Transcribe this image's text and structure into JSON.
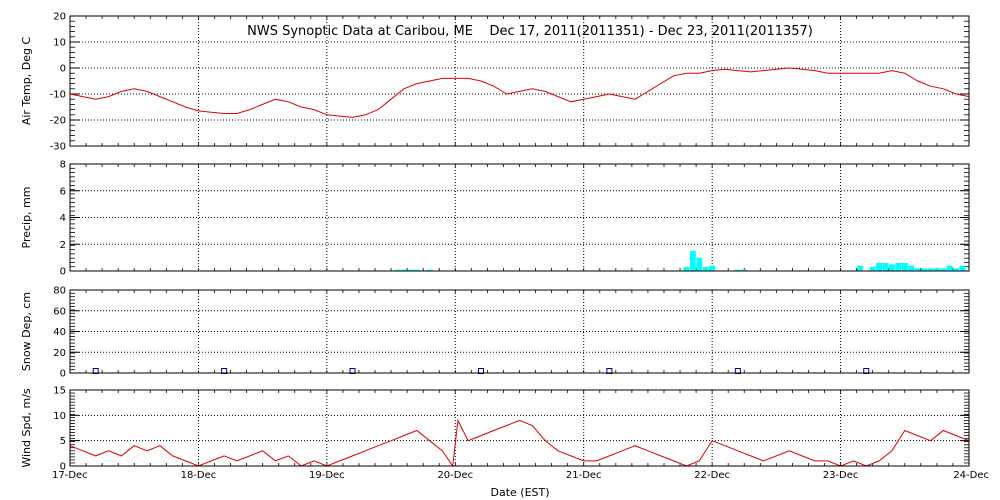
{
  "chart_data": {
    "title": "NWS Synoptic Data at Caribou, ME    Dec 17, 2011(2011351) - Dec 23, 2011(2011357)",
    "xlabel": "Date (EST)",
    "x_tick_labels": [
      "17-Dec",
      "18-Dec",
      "19-Dec",
      "20-Dec",
      "21-Dec",
      "22-Dec",
      "23-Dec",
      "24-Dec"
    ],
    "x_range_days": [
      0,
      7
    ],
    "grid": true,
    "colors": {
      "line": "#dd0000",
      "precip_bar": "#00ffff",
      "snow_marker": "#000099",
      "grid": "#000000"
    },
    "panels": [
      {
        "type": "line",
        "ylabel": "Air Temp, Deg C",
        "ylim": [
          -30,
          20
        ],
        "yticks": [
          -30,
          -20,
          -10,
          0,
          10,
          20
        ],
        "ytick_labels": [
          "-30",
          "-20",
          "-10",
          "0",
          "10",
          "20"
        ],
        "series": [
          {
            "x": [
              0.0,
              0.1,
              0.2,
              0.3,
              0.4,
              0.5,
              0.6,
              0.7,
              0.8,
              0.9,
              1.0,
              1.1,
              1.2,
              1.3,
              1.4,
              1.5,
              1.6,
              1.7,
              1.8,
              1.9,
              2.0,
              2.1,
              2.2,
              2.3,
              2.4,
              2.5,
              2.6,
              2.7,
              2.8,
              2.9,
              3.0,
              3.1,
              3.2,
              3.3,
              3.4,
              3.5,
              3.6,
              3.7,
              3.8,
              3.9,
              4.0,
              4.1,
              4.2,
              4.3,
              4.4,
              4.5,
              4.6,
              4.7,
              4.8,
              4.9,
              5.0,
              5.1,
              5.2,
              5.3,
              5.4,
              5.5,
              5.6,
              5.7,
              5.8,
              5.9,
              6.0,
              6.1,
              6.2,
              6.3,
              6.4,
              6.5,
              6.6,
              6.7,
              6.8,
              6.9,
              7.0
            ],
            "y": [
              -10,
              -11,
              -12,
              -11,
              -9,
              -8,
              -9,
              -11,
              -13,
              -15,
              -16.5,
              -17,
              -17.5,
              -17.5,
              -16,
              -14,
              -12,
              -13,
              -15,
              -16,
              -18,
              -18.5,
              -19,
              -18,
              -16,
              -12,
              -8,
              -6,
              -5,
              -4,
              -4,
              -4,
              -5,
              -7,
              -10,
              -9,
              -8,
              -9,
              -11,
              -13,
              -12,
              -11,
              -10,
              -11,
              -12,
              -9,
              -6,
              -3,
              -2,
              -2,
              -1,
              -0.5,
              -1,
              -1.5,
              -1,
              -0.5,
              0,
              -0.5,
              -1,
              -2,
              -2,
              -2,
              -2,
              -2,
              -1,
              -2,
              -5,
              -7,
              -8,
              -10,
              -11
            ]
          }
        ]
      },
      {
        "type": "bar",
        "ylabel": "Precip, mm",
        "ylim": [
          0,
          8
        ],
        "yticks": [
          0,
          2,
          4,
          6,
          8
        ],
        "ytick_labels": [
          "0",
          "2",
          "4",
          "6",
          "8"
        ],
        "series": [
          {
            "x": [
              2.55,
              2.6,
              2.65,
              2.7,
              2.8,
              4.8,
              4.85,
              4.9,
              4.95,
              5.0,
              5.2,
              5.25,
              6.15,
              6.25,
              6.3,
              6.35,
              6.4,
              6.45,
              6.5,
              6.55,
              6.6,
              6.65,
              6.7,
              6.75,
              6.8,
              6.85,
              6.9,
              6.95
            ],
            "values": [
              0.1,
              0.1,
              0.1,
              0.1,
              0.1,
              0.3,
              1.5,
              1.0,
              0.3,
              0.4,
              0.1,
              0.1,
              0.4,
              0.3,
              0.6,
              0.6,
              0.5,
              0.6,
              0.6,
              0.4,
              0.2,
              0.2,
              0.2,
              0.2,
              0.2,
              0.4,
              0.2,
              0.4
            ]
          }
        ]
      },
      {
        "type": "scatter",
        "ylabel": "Snow Dep, cm",
        "ylim": [
          0,
          80
        ],
        "yticks": [
          0,
          20,
          40,
          60,
          80
        ],
        "ytick_labels": [
          "0",
          "20",
          "40",
          "60",
          "80"
        ],
        "series": [
          {
            "x": [
              0.2,
              1.2,
              2.2,
              3.2,
              4.2,
              5.2,
              6.2
            ],
            "values": [
              0,
              0,
              0,
              0,
              0,
              0,
              0
            ]
          }
        ]
      },
      {
        "type": "line",
        "ylabel": "Wind Spd, m/s",
        "ylim": [
          0,
          15
        ],
        "yticks": [
          0,
          5,
          10,
          15
        ],
        "ytick_labels": [
          "0",
          "5",
          "10",
          "15"
        ],
        "series": [
          {
            "x": [
              0.0,
              0.1,
              0.2,
              0.3,
              0.4,
              0.5,
              0.6,
              0.7,
              0.8,
              0.9,
              1.0,
              1.1,
              1.2,
              1.3,
              1.4,
              1.5,
              1.6,
              1.7,
              1.8,
              1.9,
              2.0,
              2.1,
              2.2,
              2.3,
              2.4,
              2.5,
              2.6,
              2.7,
              2.8,
              2.9,
              2.98,
              3.02,
              3.1,
              3.2,
              3.3,
              3.4,
              3.5,
              3.6,
              3.7,
              3.8,
              3.9,
              4.0,
              4.1,
              4.2,
              4.3,
              4.4,
              4.5,
              4.6,
              4.7,
              4.8,
              4.9,
              5.0,
              5.1,
              5.2,
              5.3,
              5.4,
              5.5,
              5.6,
              5.7,
              5.8,
              5.9,
              6.0,
              6.1,
              6.2,
              6.3,
              6.4,
              6.5,
              6.6,
              6.7,
              6.8,
              6.9,
              7.0
            ],
            "y": [
              4,
              3,
              2,
              3,
              2,
              4,
              3,
              4,
              2,
              1,
              0,
              1,
              2,
              1,
              2,
              3,
              1,
              2,
              0,
              1,
              0,
              1,
              2,
              3,
              4,
              5,
              6,
              7,
              5,
              3,
              0,
              9,
              5,
              6,
              7,
              8,
              9,
              8,
              5,
              3,
              2,
              1,
              1,
              2,
              3,
              4,
              3,
              2,
              1,
              0,
              1,
              5,
              4,
              3,
              2,
              1,
              2,
              3,
              2,
              1,
              1,
              0,
              1,
              0,
              1,
              3,
              7,
              6,
              5,
              7,
              6,
              5
            ]
          }
        ]
      }
    ]
  }
}
